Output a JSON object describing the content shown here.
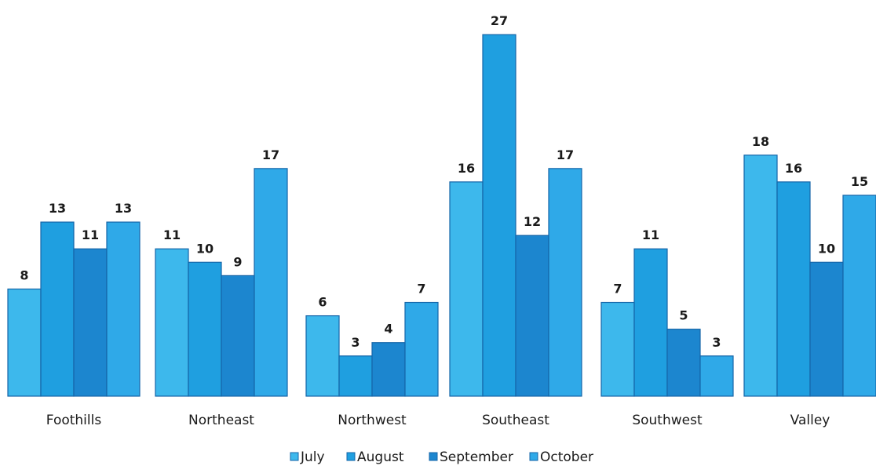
{
  "chart_data": {
    "type": "bar",
    "categories": [
      "Foothills",
      "Northeast",
      "Northwest",
      "Southeast",
      "Southwest",
      "Valley"
    ],
    "series": [
      {
        "name": "July",
        "values": [
          8,
          11,
          6,
          16,
          7,
          18
        ]
      },
      {
        "name": "August",
        "values": [
          13,
          10,
          3,
          27,
          11,
          16
        ]
      },
      {
        "name": "September",
        "values": [
          11,
          9,
          4,
          12,
          5,
          10
        ]
      },
      {
        "name": "October",
        "values": [
          13,
          17,
          7,
          17,
          3,
          15
        ]
      }
    ],
    "colors": [
      "#3db8ec",
      "#1f9fe0",
      "#1c86cf",
      "#2fa9e8"
    ],
    "title": "",
    "xlabel": "",
    "ylabel": "",
    "ylim": [
      0,
      29
    ],
    "grid": false,
    "legend_position": "bottom",
    "data_labels": true
  }
}
